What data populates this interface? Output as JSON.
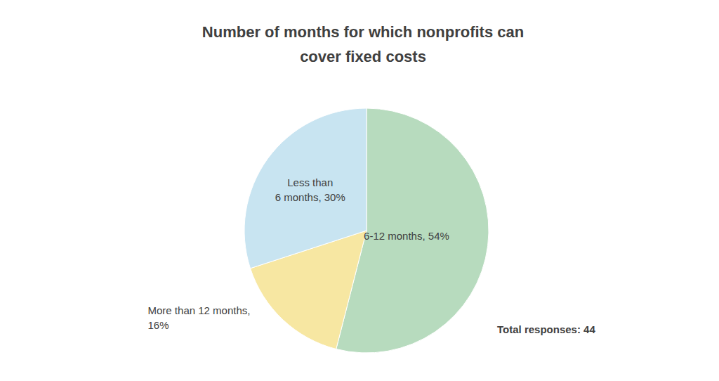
{
  "chart_data": {
    "type": "pie",
    "title": "Number of months for which nonprofits can cover fixed costs",
    "categories": [
      "6-12 months",
      "More than 12 months",
      "Less than 6 months"
    ],
    "values": [
      54,
      16,
      30
    ],
    "value_labels": [
      "6-12 months, 54%",
      "More than 12 months, 16%",
      "Less than 6 months, 30%"
    ],
    "colors": [
      "#b7dbbe",
      "#f7e7a2",
      "#c8e4f1"
    ],
    "data_labels": true,
    "annotation": "Total responses: 44"
  }
}
